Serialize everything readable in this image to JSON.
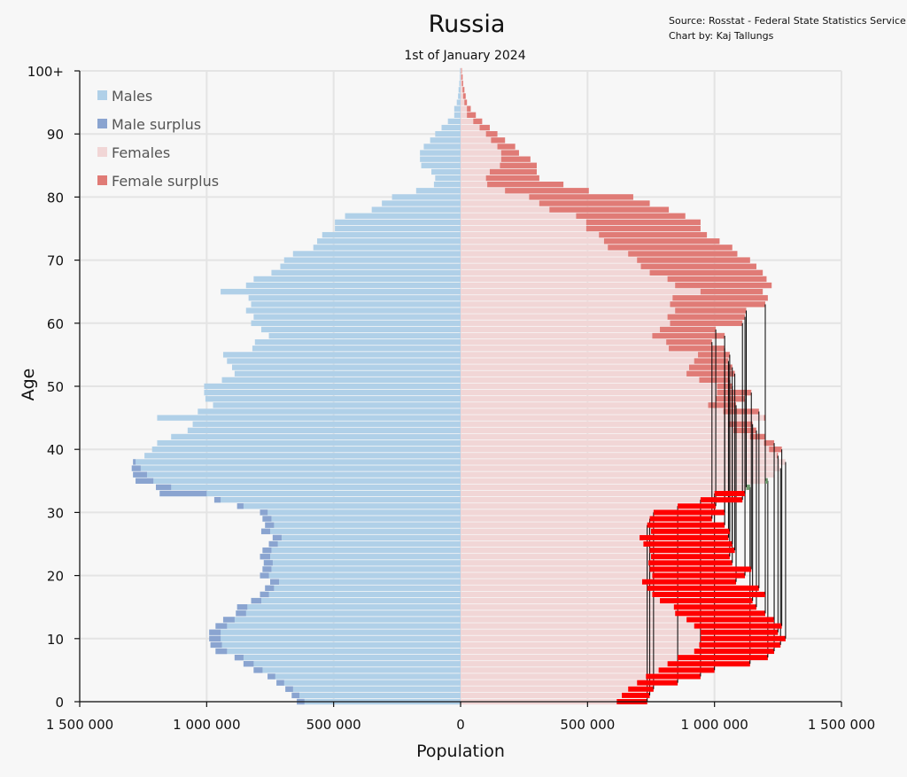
{
  "source": {
    "line1": "Source: Rosstat - Federal State Statistics Service",
    "line2": "Chart by: Kaj Tallungs"
  },
  "chart_data": {
    "type": "bar",
    "orientation": "horizontal",
    "title": "Russia",
    "subtitle": "1st of January 2024",
    "xlabel": "Population",
    "ylabel": "Age",
    "xlim": [
      -1500000,
      1500000
    ],
    "ylim": [
      0,
      100
    ],
    "x_ticks": [
      -1500000,
      -1000000,
      -500000,
      0,
      500000,
      1000000,
      1500000
    ],
    "x_tick_labels": [
      "1 500 000",
      "1 000 000",
      "500 000",
      "0",
      "500 000",
      "1 000 000",
      "1 500 000"
    ],
    "y_ticks": [
      0,
      10,
      20,
      30,
      40,
      50,
      60,
      70,
      80,
      90,
      100
    ],
    "y_tick_labels": [
      "0",
      "10",
      "20",
      "30",
      "40",
      "50",
      "60",
      "70",
      "80",
      "90",
      "100+"
    ],
    "grid": true,
    "legend_position": "top-left",
    "legend": [
      "Males",
      "Male surplus",
      "Females",
      "Female surplus"
    ],
    "colors": {
      "males": "#b0d0e8",
      "male_surplus": "#8aa4d0",
      "females": "#f1d6d6",
      "female_surplus": "#e07b76",
      "echo_line": "#000000",
      "echo_highlight_red": "#ff0000",
      "echo_highlight_green": "#6e9a6e",
      "grid": "#e4e4e4"
    },
    "ages": [
      0,
      1,
      2,
      3,
      4,
      5,
      6,
      7,
      8,
      9,
      10,
      11,
      12,
      13,
      14,
      15,
      16,
      17,
      18,
      19,
      20,
      21,
      22,
      23,
      24,
      25,
      26,
      27,
      28,
      29,
      30,
      31,
      32,
      33,
      34,
      35,
      36,
      37,
      38,
      39,
      40,
      41,
      42,
      43,
      44,
      45,
      46,
      47,
      48,
      49,
      50,
      51,
      52,
      53,
      54,
      55,
      56,
      57,
      58,
      59,
      60,
      61,
      62,
      63,
      64,
      65,
      66,
      67,
      68,
      69,
      70,
      71,
      72,
      73,
      74,
      75,
      76,
      77,
      78,
      79,
      80,
      81,
      82,
      83,
      84,
      85,
      86,
      87,
      88,
      89,
      90,
      91,
      92,
      93,
      94,
      95,
      96,
      97,
      98,
      99,
      100
    ],
    "series": [
      {
        "name": "Males",
        "values": [
          645000,
          665000,
          690000,
          725000,
          760000,
          815000,
          855000,
          890000,
          965000,
          985000,
          990000,
          990000,
          965000,
          935000,
          885000,
          880000,
          825000,
          790000,
          770000,
          750000,
          790000,
          780000,
          775000,
          790000,
          780000,
          755000,
          740000,
          785000,
          770000,
          780000,
          790000,
          880000,
          970000,
          1185000,
          1200000,
          1280000,
          1290000,
          1295000,
          1290000,
          1245000,
          1215000,
          1195000,
          1140000,
          1075000,
          1055000,
          1195000,
          1035000,
          975000,
          1005000,
          1010000,
          1010000,
          940000,
          890000,
          900000,
          920000,
          935000,
          820000,
          810000,
          755000,
          785000,
          825000,
          815000,
          845000,
          825000,
          835000,
          945000,
          845000,
          815000,
          745000,
          710000,
          695000,
          660000,
          580000,
          565000,
          545000,
          495000,
          495000,
          455000,
          350000,
          310000,
          270000,
          175000,
          105000,
          100000,
          115000,
          155000,
          160000,
          160000,
          145000,
          120000,
          100000,
          75000,
          50000,
          25000,
          25000,
          15000,
          10000,
          8000,
          5000,
          3000,
          2500
        ],
        "surplus": [
          30000,
          20000,
          20000,
          30000,
          30000,
          30000,
          30000,
          30000,
          30000,
          30000,
          30000,
          30000,
          30000,
          30000,
          30000,
          30000,
          30000,
          30000,
          30000,
          30000,
          30000,
          30000,
          30000,
          30000,
          30000,
          30000,
          30000,
          30000,
          30000,
          30000,
          30000,
          30000,
          30000,
          30000,
          30000,
          30000,
          30000,
          30000,
          30000,
          30000,
          30000,
          30000,
          30000,
          30000,
          30000,
          30000,
          30000,
          30000,
          30000,
          30000,
          30000,
          30000,
          30000,
          30000,
          30000,
          30000,
          30000,
          30000,
          30000,
          30000,
          30000,
          30000,
          30000,
          30000,
          30000,
          30000,
          30000,
          30000,
          30000,
          30000,
          30000,
          30000,
          30000,
          30000,
          30000,
          30000,
          30000,
          30000,
          30000,
          30000,
          30000,
          30000,
          30000,
          30000,
          30000,
          30000,
          30000,
          30000,
          30000,
          30000,
          30000,
          30000,
          30000,
          30000,
          30000,
          30000,
          30000,
          30000,
          30000,
          30000,
          30000
        ]
      },
      {
        "name": "Females",
        "values": [
          615000,
          635000,
          660000,
          695000,
          730000,
          780000,
          815000,
          855000,
          920000,
          940000,
          945000,
          945000,
          920000,
          890000,
          845000,
          840000,
          785000,
          755000,
          735000,
          715000,
          755000,
          745000,
          740000,
          750000,
          745000,
          720000,
          705000,
          750000,
          735000,
          745000,
          760000,
          855000,
          945000,
          1000000,
          1140000,
          1210000,
          1235000,
          1260000,
          1280000,
          1250000,
          1265000,
          1235000,
          1200000,
          1165000,
          1150000,
          1200000,
          1175000,
          1085000,
          1120000,
          1145000,
          1070000,
          1060000,
          1080000,
          1070000,
          1055000,
          1060000,
          1040000,
          990000,
          1040000,
          1005000,
          1110000,
          1120000,
          1125000,
          1200000,
          1210000,
          1190000,
          1225000,
          1205000,
          1190000,
          1165000,
          1140000,
          1090000,
          1070000,
          1020000,
          970000,
          945000,
          945000,
          885000,
          820000,
          745000,
          680000,
          505000,
          405000,
          310000,
          300000,
          300000,
          275000,
          230000,
          215000,
          175000,
          145000,
          115000,
          85000,
          60000,
          40000,
          25000,
          20000,
          15000,
          10000,
          8000,
          5000
        ],
        "surplus": [
          0,
          0,
          0,
          0,
          0,
          0,
          0,
          0,
          0,
          0,
          0,
          0,
          0,
          0,
          0,
          0,
          0,
          0,
          0,
          0,
          0,
          0,
          0,
          0,
          0,
          0,
          0,
          0,
          0,
          0,
          0,
          0,
          0,
          0,
          0,
          0,
          0,
          0,
          0,
          0,
          0,
          0,
          0,
          0,
          0,
          0,
          0,
          0,
          0,
          0,
          0,
          0,
          0,
          0,
          0,
          0,
          0,
          0,
          0,
          0,
          0,
          0,
          0,
          0,
          0,
          0,
          0,
          0,
          0,
          0,
          0,
          0,
          0,
          0,
          0,
          0,
          0,
          0,
          0,
          0,
          0,
          0,
          0,
          0,
          0,
          0,
          0,
          0,
          0,
          0,
          0,
          0,
          0,
          0,
          0,
          0,
          0,
          0,
          0,
          0,
          0
        ]
      }
    ]
  }
}
